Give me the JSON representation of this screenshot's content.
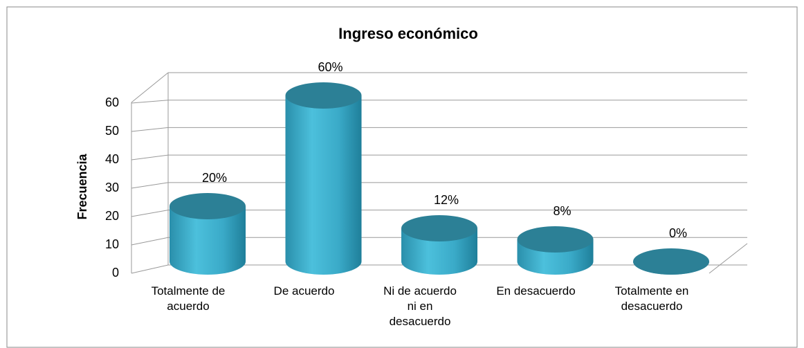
{
  "chart_data": {
    "type": "bar3d",
    "title": "Ingreso económico",
    "y_label": "Frecuencia",
    "categories": [
      "Totalmente de acuerdo",
      "De acuerdo",
      "Ni de acuerdo ni en desacuerdo",
      "En desacuerdo",
      "Totalmente en desacuerdo"
    ],
    "values": [
      20,
      60,
      12,
      8,
      0
    ],
    "value_labels": [
      "20%",
      "60%",
      "12%",
      "8%",
      "0%"
    ],
    "color": "#3aaac8",
    "ylim": [
      0,
      70
    ],
    "yticks": [
      0,
      10,
      20,
      30,
      40,
      50,
      60
    ],
    "grid": true
  }
}
